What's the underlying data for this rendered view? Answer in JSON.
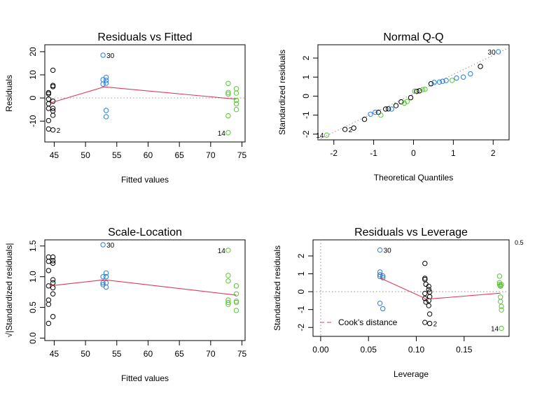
{
  "colors": {
    "group_a": "#000000",
    "group_b": "#2a7fd6",
    "group_c": "#5cc33a",
    "smooth": "#df3b57",
    "reference": "#9a9a9a",
    "cook": "#df3b57"
  },
  "chart_data": [
    {
      "type": "scatter",
      "title": "Residuals vs Fitted",
      "xlabel": "Fitted values",
      "ylabel": "Residuals",
      "xlim": [
        43.5,
        75.5
      ],
      "ylim": [
        -19,
        23
      ],
      "xticks": [
        45,
        50,
        55,
        60,
        65,
        70,
        75
      ],
      "yticks": [
        -10,
        0,
        10,
        20
      ],
      "reference_line": {
        "type": "h",
        "value": 0,
        "style": "dotted"
      },
      "series": [
        {
          "color_key": "group_a",
          "x": [
            44.1,
            44.1,
            44.1,
            44.1,
            44.1,
            44.1,
            44.1,
            44.8,
            44.8,
            44.8,
            44.8,
            44.8,
            44.8,
            44.8,
            44.8
          ],
          "y": [
            2.3,
            -0.5,
            -2.5,
            -4.5,
            -9.8,
            -13.4,
            1.8,
            12.0,
            5.4,
            4.9,
            -1.4,
            -4.5,
            -5.6,
            -7.5,
            -13.8
          ]
        },
        {
          "color_key": "group_b",
          "x": [
            52.8,
            52.8,
            52.8,
            53.3,
            53.3,
            53.3,
            53.3,
            53.3
          ],
          "y": [
            18.5,
            7.9,
            6.0,
            8.9,
            7.6,
            6.4,
            -5.4,
            -8.1
          ]
        },
        {
          "color_key": "group_c",
          "x": [
            72.8,
            72.8,
            72.8,
            72.8,
            72.8,
            74.1,
            74.1,
            74.1,
            74.1,
            74.1
          ],
          "y": [
            6.3,
            2.4,
            1.7,
            -7.7,
            -15.0,
            4.0,
            2.1,
            -1.0,
            -2.5,
            -5.0
          ]
        }
      ],
      "smooth": {
        "x": [
          44.3,
          53.0,
          74.1
        ],
        "y": [
          -2.2,
          4.8,
          -0.5
        ]
      },
      "annotations": [
        {
          "label": "30",
          "x": 52.8,
          "y": 18.5
        },
        {
          "label": "2",
          "x": 44.8,
          "y": -13.8
        },
        {
          "label": "14",
          "x": 72.8,
          "y": -15.0
        }
      ]
    },
    {
      "type": "scatter",
      "title": "Normal Q-Q",
      "xlabel": "Theoretical Quantiles",
      "ylabel": "Standardized residuals",
      "xlim": [
        -2.4,
        2.4
      ],
      "ylim": [
        -2.3,
        2.7
      ],
      "xticks": [
        -2,
        -1,
        0,
        1,
        2
      ],
      "yticks": [
        -2,
        -1,
        0,
        1,
        2
      ],
      "reference_line": {
        "type": "line",
        "x": [
          -2.4,
          2.4
        ],
        "y": [
          -2.3,
          2.55
        ],
        "style": "dotted"
      },
      "series": [
        {
          "color_key": "group_a",
          "x": [
            -1.72,
            -1.5,
            -1.23,
            -0.88,
            -0.7,
            -0.63,
            -0.44,
            -0.31,
            -0.07,
            0.08,
            0.15,
            0.44,
            1.68
          ],
          "y": [
            -1.75,
            -1.68,
            -1.22,
            -0.85,
            -0.68,
            -0.67,
            -0.5,
            -0.3,
            -0.08,
            0.25,
            0.28,
            0.65,
            1.56
          ]
        },
        {
          "color_key": "group_b",
          "x": [
            -1.08,
            -0.96,
            -0.55,
            0.52,
            0.65,
            0.73,
            0.82,
            1.08,
            1.25,
            1.43,
            2.13
          ],
          "y": [
            -0.95,
            -0.85,
            -0.68,
            0.72,
            0.74,
            0.78,
            0.82,
            0.95,
            1.0,
            1.17,
            2.33
          ]
        },
        {
          "color_key": "group_c",
          "x": [
            -2.18,
            -0.82,
            -0.23,
            -0.16,
            0.03,
            0.23,
            0.29,
            0.97
          ],
          "y": [
            -2.05,
            -1.0,
            -0.37,
            -0.28,
            0.26,
            0.34,
            0.36,
            0.83
          ]
        }
      ],
      "annotations": [
        {
          "label": "30",
          "x": 2.13,
          "y": 2.33
        },
        {
          "label": "2",
          "x": -1.72,
          "y": -1.75
        },
        {
          "label": "14",
          "x": -2.18,
          "y": -2.05
        }
      ]
    },
    {
      "type": "scatter",
      "title": "Scale-Location",
      "xlabel": "Fitted values",
      "ylabel": "√|Standardized residuals|",
      "xlim": [
        43.5,
        75.5
      ],
      "ylim": [
        -0.04,
        1.6
      ],
      "xticks": [
        45,
        50,
        55,
        60,
        65,
        70,
        75
      ],
      "yticks": [
        0.0,
        0.5,
        1.0,
        1.5
      ],
      "series": [
        {
          "color_key": "group_a",
          "x": [
            44.1,
            44.1,
            44.1,
            44.1,
            44.1,
            44.1,
            44.1,
            44.8,
            44.8,
            44.8,
            44.8,
            44.8,
            44.8,
            44.8,
            44.8
          ],
          "y": [
            1.32,
            1.25,
            1.1,
            0.85,
            0.62,
            0.55,
            0.24,
            1.32,
            1.26,
            1.22,
            0.95,
            0.9,
            0.82,
            0.72,
            0.35
          ]
        },
        {
          "color_key": "group_b",
          "x": [
            52.8,
            52.8,
            52.8,
            52.8,
            53.3,
            53.3,
            53.3,
            53.3
          ],
          "y": [
            1.52,
            1.0,
            0.9,
            0.87,
            1.06,
            1.0,
            0.9,
            0.83
          ]
        },
        {
          "color_key": "group_c",
          "x": [
            72.8,
            72.8,
            72.8,
            72.8,
            72.8,
            72.8,
            74.1,
            74.1,
            74.1,
            74.1,
            74.1
          ],
          "y": [
            1.43,
            1.02,
            0.93,
            0.62,
            0.58,
            0.55,
            0.85,
            0.72,
            0.6,
            0.58,
            0.45
          ]
        }
      ],
      "smooth": {
        "x": [
          44.3,
          53.0,
          74.1
        ],
        "y": [
          0.85,
          0.95,
          0.7
        ]
      },
      "annotations": [
        {
          "label": "30",
          "x": 52.8,
          "y": 1.52
        },
        {
          "label": "14",
          "x": 72.8,
          "y": 1.43
        }
      ]
    },
    {
      "type": "scatter",
      "title": "Residuals vs Leverage",
      "xlabel": "Leverage",
      "ylabel": "Standardized residuals",
      "xlim": [
        -0.008,
        0.197
      ],
      "ylim": [
        -2.5,
        2.9
      ],
      "xticks": [
        0.0,
        0.05,
        0.1,
        0.15
      ],
      "xtick_labels": [
        "0.00",
        "0.05",
        "0.10",
        "0.15"
      ],
      "yticks": [
        -2,
        -1,
        0,
        1,
        2
      ],
      "reference_lines": [
        {
          "type": "h",
          "value": 0,
          "style": "dotted"
        },
        {
          "type": "v",
          "value": 0,
          "style": "dotted"
        }
      ],
      "series": [
        {
          "color_key": "group_a",
          "x": [
            0.109,
            0.109,
            0.109,
            0.11,
            0.109,
            0.109,
            0.11,
            0.113,
            0.113,
            0.113,
            0.114,
            0.114,
            0.113,
            0.114
          ],
          "y": [
            1.58,
            0.75,
            0.68,
            0.42,
            -0.1,
            -0.38,
            -0.58,
            -0.78,
            0.3,
            0.12,
            -0.02,
            -0.28,
            -0.5,
            -1.25
          ]
        },
        {
          "color_key": "group_b",
          "x": [
            0.062,
            0.062,
            0.062,
            0.062,
            0.062,
            0.065,
            0.065,
            0.065
          ],
          "y": [
            2.33,
            1.1,
            0.95,
            0.85,
            -0.65,
            -0.95,
            0.88,
            0.78
          ]
        },
        {
          "color_key": "group_c",
          "x": [
            0.187,
            0.187,
            0.187,
            0.188,
            0.188,
            0.188,
            0.188,
            0.189,
            0.189,
            0.189,
            0.189
          ],
          "y": [
            0.87,
            0.5,
            0.4,
            0.3,
            0.35,
            -0.3,
            -0.55,
            -0.82,
            -1.02,
            0.4,
            -2.05
          ]
        }
      ],
      "extra_points": [
        {
          "color_key": "group_a",
          "x": 0.109,
          "y": -1.72
        },
        {
          "color_key": "group_a",
          "x": 0.114,
          "y": -1.78
        }
      ],
      "smooth": {
        "x": [
          0.063,
          0.111,
          0.188
        ],
        "y": [
          0.75,
          -0.42,
          -0.08
        ]
      },
      "annotations": [
        {
          "label": "30",
          "x": 0.062,
          "y": 2.33
        },
        {
          "label": "2",
          "x": 0.114,
          "y": -1.78
        },
        {
          "label": "14",
          "x": 0.189,
          "y": -2.05
        }
      ],
      "cook_contour_label": "0.5",
      "legend": {
        "label": "Cook's distance",
        "position": "bottom-left"
      }
    }
  ]
}
